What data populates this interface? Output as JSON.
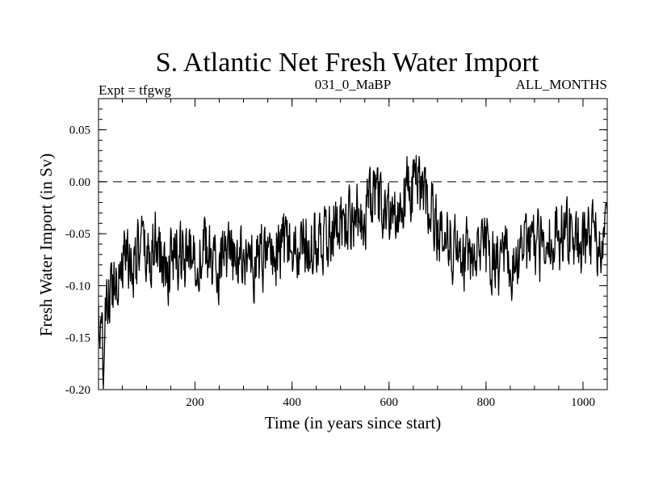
{
  "chart_data": {
    "type": "line",
    "title": "S. Atlantic Net Fresh Water Import",
    "subtitle_left": "Expt = tfgwg",
    "subtitle_center": "031_0_MaBP",
    "subtitle_right": "ALL_MONTHS",
    "xlabel": "Time (in years since start)",
    "ylabel": "Fresh Water Import (in Sv)",
    "xlim": [
      1,
      1050
    ],
    "ylim": [
      -0.2,
      0.08
    ],
    "x_ticks": [
      200,
      400,
      600,
      800,
      1000
    ],
    "x_tick_labels": [
      "200",
      "400",
      "600",
      "800",
      "1000"
    ],
    "y_ticks": [
      -0.2,
      -0.15,
      -0.1,
      -0.05,
      0.0,
      0.05
    ],
    "y_tick_labels": [
      "-0.20",
      "-0.15",
      "-0.10",
      "-0.05",
      "0.00",
      "0.05"
    ],
    "reference_line": {
      "y": 0.0,
      "style": "dashed"
    },
    "series": [
      {
        "name": "Fresh Water Import",
        "color": "#000000",
        "x": [
          1,
          5,
          10,
          15,
          20,
          25,
          30,
          40,
          50,
          60,
          70,
          80,
          90,
          100,
          120,
          140,
          160,
          180,
          200,
          220,
          240,
          260,
          280,
          300,
          320,
          340,
          360,
          380,
          390,
          400,
          420,
          440,
          460,
          480,
          500,
          520,
          540,
          560,
          570,
          580,
          600,
          620,
          640,
          655,
          660,
          680,
          700,
          720,
          740,
          760,
          780,
          800,
          820,
          840,
          850,
          860,
          880,
          900,
          920,
          940,
          960,
          970,
          980,
          1000,
          1020,
          1040,
          1050
        ],
        "values": [
          -0.13,
          -0.15,
          -0.17,
          -0.14,
          -0.12,
          -0.11,
          -0.1,
          -0.08,
          -0.075,
          -0.07,
          -0.08,
          -0.07,
          -0.065,
          -0.075,
          -0.06,
          -0.085,
          -0.07,
          -0.075,
          -0.07,
          -0.065,
          -0.08,
          -0.075,
          -0.08,
          -0.07,
          -0.08,
          -0.075,
          -0.07,
          -0.065,
          -0.06,
          -0.07,
          -0.065,
          -0.055,
          -0.05,
          -0.045,
          -0.04,
          -0.035,
          -0.03,
          -0.02,
          -0.015,
          -0.025,
          -0.03,
          -0.02,
          -0.01,
          0.0,
          -0.01,
          -0.02,
          -0.04,
          -0.055,
          -0.065,
          -0.07,
          -0.075,
          -0.07,
          -0.08,
          -0.075,
          -0.09,
          -0.075,
          -0.07,
          -0.065,
          -0.06,
          -0.055,
          -0.045,
          -0.04,
          -0.05,
          -0.06,
          -0.055,
          -0.06,
          -0.065
        ],
        "noise_amplitude": 0.025,
        "sampling": "annual"
      }
    ]
  }
}
